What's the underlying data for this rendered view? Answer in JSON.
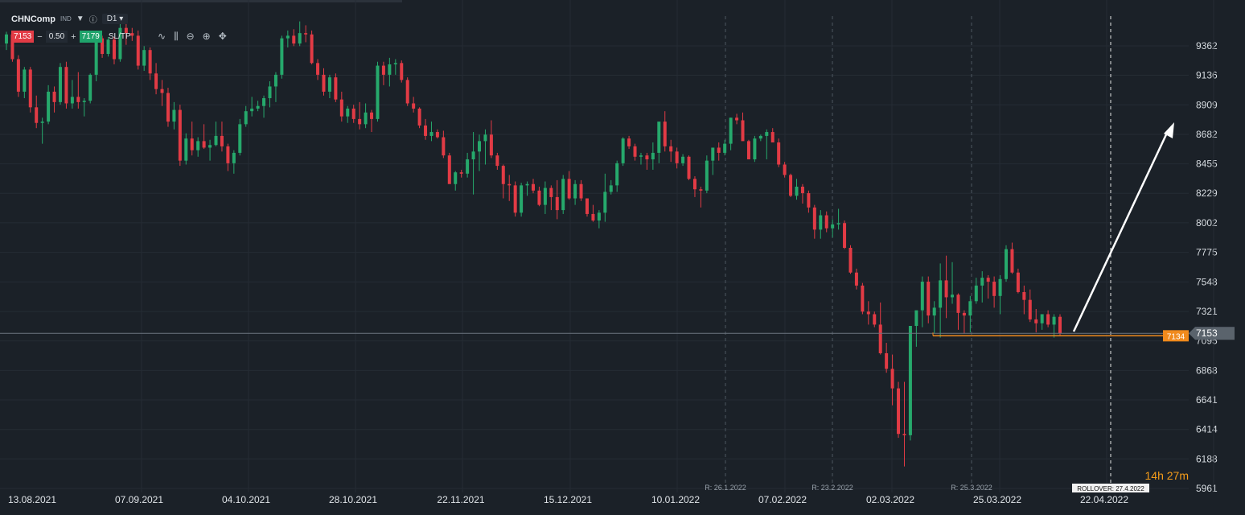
{
  "header": {
    "symbol": "CHNComp",
    "type": "IND",
    "timeframe": "D1",
    "sell_price": "7153",
    "buy_price": "7179",
    "quantity": "0.50",
    "sltp_label": "SL/TP"
  },
  "timer": "14h 27m",
  "colors": {
    "bg": "#1b2128",
    "up": "#26a96c",
    "down": "#e23b45",
    "grid": "#252c34",
    "orange": "#f08a1c"
  },
  "chart_data": {
    "type": "candlestick",
    "y_ticks": [
      9362,
      9136,
      8909,
      8682,
      8455,
      8229,
      8002,
      7775,
      7548,
      7321,
      7095,
      6868,
      6641,
      6414,
      6188,
      5961
    ],
    "x_ticks": [
      "13.08.2021",
      "07.09.2021",
      "04.10.2021",
      "28.10.2021",
      "22.11.2021",
      "15.12.2021",
      "10.01.2022",
      "07.02.2022",
      "02.03.2022",
      "25.03.2022",
      "22.04.2022"
    ],
    "current_price": 7153,
    "pending_price": 7134,
    "event_markers": [
      "R: 26.1.2022",
      "R: 23.2.2022",
      "R: 25.3.2022"
    ],
    "rollover": "ROLLOVER: 27.4.2022",
    "candles": [
      [
        9380,
        9470,
        9330,
        9450
      ],
      [
        9450,
        9460,
        9240,
        9260
      ],
      [
        9260,
        9290,
        8970,
        9010
      ],
      [
        9010,
        9200,
        8960,
        9180
      ],
      [
        9180,
        9200,
        8850,
        8890
      ],
      [
        8890,
        8980,
        8730,
        8770
      ],
      [
        8770,
        8810,
        8610,
        8780
      ],
      [
        8780,
        9060,
        8760,
        9010
      ],
      [
        9010,
        9050,
        8850,
        8930
      ],
      [
        8930,
        9230,
        8910,
        9200
      ],
      [
        9200,
        9240,
        8880,
        8920
      ],
      [
        8920,
        9100,
        8880,
        8970
      ],
      [
        8970,
        9160,
        8880,
        8930
      ],
      [
        8930,
        8960,
        8820,
        8940
      ],
      [
        8940,
        9150,
        8920,
        9140
      ],
      [
        9140,
        9460,
        9090,
        9420
      ],
      [
        9420,
        9440,
        9270,
        9300
      ],
      [
        9300,
        9430,
        9280,
        9410
      ],
      [
        9410,
        9430,
        9220,
        9260
      ],
      [
        9260,
        9530,
        9240,
        9500
      ],
      [
        9500,
        9560,
        9370,
        9460
      ],
      [
        9460,
        9500,
        9400,
        9440
      ],
      [
        9440,
        9480,
        9180,
        9210
      ],
      [
        9210,
        9360,
        9170,
        9330
      ],
      [
        9330,
        9350,
        9100,
        9150
      ],
      [
        9150,
        9230,
        8990,
        9030
      ],
      [
        9030,
        9100,
        8900,
        9000
      ],
      [
        9000,
        9040,
        8740,
        8780
      ],
      [
        8780,
        8930,
        8720,
        8870
      ],
      [
        8870,
        8910,
        8440,
        8480
      ],
      [
        8480,
        8690,
        8450,
        8650
      ],
      [
        8650,
        8780,
        8520,
        8560
      ],
      [
        8560,
        8660,
        8510,
        8630
      ],
      [
        8630,
        8760,
        8570,
        8580
      ],
      [
        8580,
        8640,
        8480,
        8600
      ],
      [
        8600,
        8780,
        8590,
        8670
      ],
      [
        8670,
        8780,
        8550,
        8590
      ],
      [
        8590,
        8610,
        8400,
        8460
      ],
      [
        8460,
        8560,
        8380,
        8540
      ],
      [
        8540,
        8800,
        8520,
        8760
      ],
      [
        8760,
        8900,
        8740,
        8860
      ],
      [
        8860,
        8970,
        8820,
        8880
      ],
      [
        8880,
        8940,
        8860,
        8900
      ],
      [
        8900,
        8980,
        8810,
        8960
      ],
      [
        8960,
        9090,
        8890,
        9050
      ],
      [
        9050,
        9160,
        8930,
        9140
      ],
      [
        9140,
        9440,
        9110,
        9420
      ],
      [
        9420,
        9480,
        9350,
        9440
      ],
      [
        9440,
        9490,
        9360,
        9380
      ],
      [
        9380,
        9550,
        9360,
        9460
      ],
      [
        9460,
        9520,
        9390,
        9450
      ],
      [
        9450,
        9480,
        9220,
        9230
      ],
      [
        9230,
        9260,
        9100,
        9140
      ],
      [
        9140,
        9190,
        8980,
        9010
      ],
      [
        9010,
        9140,
        8960,
        9120
      ],
      [
        9120,
        9150,
        8930,
        8950
      ],
      [
        8950,
        9010,
        8780,
        8820
      ],
      [
        8820,
        8900,
        8770,
        8880
      ],
      [
        8880,
        8910,
        8770,
        8800
      ],
      [
        8800,
        8930,
        8720,
        8760
      ],
      [
        8760,
        8920,
        8730,
        8850
      ],
      [
        8850,
        8870,
        8700,
        8800
      ],
      [
        8800,
        9240,
        8780,
        9210
      ],
      [
        9210,
        9240,
        9060,
        9140
      ],
      [
        9140,
        9270,
        9050,
        9220
      ],
      [
        9220,
        9260,
        9140,
        9230
      ],
      [
        9230,
        9250,
        9080,
        9100
      ],
      [
        9100,
        9120,
        8900,
        8920
      ],
      [
        8920,
        8970,
        8850,
        8880
      ],
      [
        8880,
        8890,
        8730,
        8750
      ],
      [
        8750,
        8800,
        8640,
        8670
      ],
      [
        8670,
        8780,
        8630,
        8700
      ],
      [
        8700,
        8720,
        8650,
        8660
      ],
      [
        8660,
        8710,
        8500,
        8520
      ],
      [
        8520,
        8540,
        8310,
        8300
      ],
      [
        8300,
        8400,
        8250,
        8390
      ],
      [
        8390,
        8410,
        8350,
        8380
      ],
      [
        8380,
        8540,
        8350,
        8490
      ],
      [
        8490,
        8700,
        8220,
        8550
      ],
      [
        8550,
        8680,
        8400,
        8630
      ],
      [
        8630,
        8720,
        8450,
        8680
      ],
      [
        8680,
        8790,
        8500,
        8520
      ],
      [
        8520,
        8540,
        8410,
        8440
      ],
      [
        8440,
        8450,
        8190,
        8300
      ],
      [
        8300,
        8370,
        8170,
        8290
      ],
      [
        8290,
        8320,
        8050,
        8080
      ],
      [
        8080,
        8310,
        8050,
        8290
      ],
      [
        8290,
        8320,
        8210,
        8300
      ],
      [
        8300,
        8340,
        8230,
        8250
      ],
      [
        8250,
        8280,
        8130,
        8140
      ],
      [
        8140,
        8320,
        8070,
        8270
      ],
      [
        8270,
        8290,
        8100,
        8200
      ],
      [
        8200,
        8330,
        8030,
        8100
      ],
      [
        8100,
        8370,
        8070,
        8340
      ],
      [
        8340,
        8400,
        8180,
        8190
      ],
      [
        8190,
        8330,
        8140,
        8300
      ],
      [
        8300,
        8330,
        8170,
        8190
      ],
      [
        8190,
        8190,
        8050,
        8070
      ],
      [
        8070,
        8140,
        8010,
        8020
      ],
      [
        8020,
        8100,
        7960,
        8080
      ],
      [
        8080,
        8380,
        8010,
        8240
      ],
      [
        8240,
        8330,
        8220,
        8290
      ],
      [
        8290,
        8480,
        8240,
        8460
      ],
      [
        8460,
        8660,
        8440,
        8650
      ],
      [
        8650,
        8670,
        8570,
        8590
      ],
      [
        8590,
        8610,
        8480,
        8510
      ],
      [
        8510,
        8540,
        8450,
        8520
      ],
      [
        8520,
        8540,
        8410,
        8490
      ],
      [
        8490,
        8620,
        8410,
        8540
      ],
      [
        8540,
        8770,
        8460,
        8780
      ],
      [
        8780,
        8860,
        8550,
        8590
      ],
      [
        8590,
        8640,
        8470,
        8550
      ],
      [
        8550,
        8580,
        8420,
        8460
      ],
      [
        8460,
        8530,
        8440,
        8510
      ],
      [
        8510,
        8520,
        8330,
        8340
      ],
      [
        8340,
        8360,
        8200,
        8260
      ],
      [
        8260,
        8280,
        8120,
        8250
      ],
      [
        8250,
        8520,
        8230,
        8480
      ],
      [
        8480,
        8560,
        8370,
        8580
      ],
      [
        8580,
        8620,
        8480,
        8540
      ],
      [
        8540,
        8640,
        8520,
        8610
      ],
      [
        8610,
        8810,
        8560,
        8810
      ],
      [
        8810,
        8840,
        8760,
        8790
      ],
      [
        8790,
        8850,
        8650,
        8630
      ],
      [
        8630,
        8640,
        8500,
        8490
      ],
      [
        8490,
        8670,
        8470,
        8650
      ],
      [
        8650,
        8680,
        8630,
        8670
      ],
      [
        8670,
        8720,
        8490,
        8700
      ],
      [
        8700,
        8730,
        8620,
        8620
      ],
      [
        8620,
        8650,
        8430,
        8450
      ],
      [
        8450,
        8470,
        8350,
        8370
      ],
      [
        8370,
        8380,
        8200,
        8210
      ],
      [
        8210,
        8340,
        8180,
        8280
      ],
      [
        8280,
        8300,
        8150,
        8230
      ],
      [
        8230,
        8250,
        8080,
        8120
      ],
      [
        8120,
        8140,
        7880,
        7950
      ],
      [
        7950,
        8100,
        7880,
        8060
      ],
      [
        8060,
        8090,
        7930,
        7960
      ],
      [
        7960,
        8030,
        7890,
        7990
      ],
      [
        7990,
        8110,
        7950,
        8000
      ],
      [
        8000,
        8020,
        7800,
        7810
      ],
      [
        7810,
        7830,
        7610,
        7620
      ],
      [
        7620,
        7650,
        7490,
        7520
      ],
      [
        7520,
        7540,
        7300,
        7320
      ],
      [
        7320,
        7400,
        7220,
        7300
      ],
      [
        7300,
        7320,
        7200,
        7220
      ],
      [
        7220,
        7390,
        6990,
        7000
      ],
      [
        7000,
        7080,
        6850,
        6880
      ],
      [
        6880,
        6990,
        6600,
        6730
      ],
      [
        6730,
        6780,
        6350,
        6380
      ],
      [
        6380,
        6780,
        6130,
        6370
      ],
      [
        6370,
        7210,
        6330,
        7210
      ],
      [
        7210,
        7320,
        7050,
        7330
      ],
      [
        7330,
        7590,
        7200,
        7550
      ],
      [
        7550,
        7590,
        7230,
        7290
      ],
      [
        7290,
        7400,
        7150,
        7350
      ],
      [
        7350,
        7690,
        7120,
        7560
      ],
      [
        7560,
        7750,
        7270,
        7430
      ],
      [
        7430,
        7700,
        7380,
        7450
      ],
      [
        7450,
        7460,
        7180,
        7310
      ],
      [
        7310,
        7330,
        7150,
        7290
      ],
      [
        7290,
        7440,
        7160,
        7400
      ],
      [
        7400,
        7580,
        7380,
        7520
      ],
      [
        7520,
        7630,
        7390,
        7580
      ],
      [
        7580,
        7600,
        7420,
        7550
      ],
      [
        7550,
        7590,
        7350,
        7440
      ],
      [
        7440,
        7600,
        7300,
        7570
      ],
      [
        7570,
        7830,
        7550,
        7800
      ],
      [
        7800,
        7850,
        7610,
        7620
      ],
      [
        7620,
        7650,
        7460,
        7470
      ],
      [
        7470,
        7520,
        7300,
        7410
      ],
      [
        7410,
        7490,
        7240,
        7260
      ],
      [
        7260,
        7340,
        7160,
        7230
      ],
      [
        7230,
        7300,
        7180,
        7300
      ],
      [
        7300,
        7330,
        7200,
        7220
      ],
      [
        7220,
        7300,
        7120,
        7280
      ],
      [
        7280,
        7300,
        7140,
        7153
      ]
    ]
  }
}
